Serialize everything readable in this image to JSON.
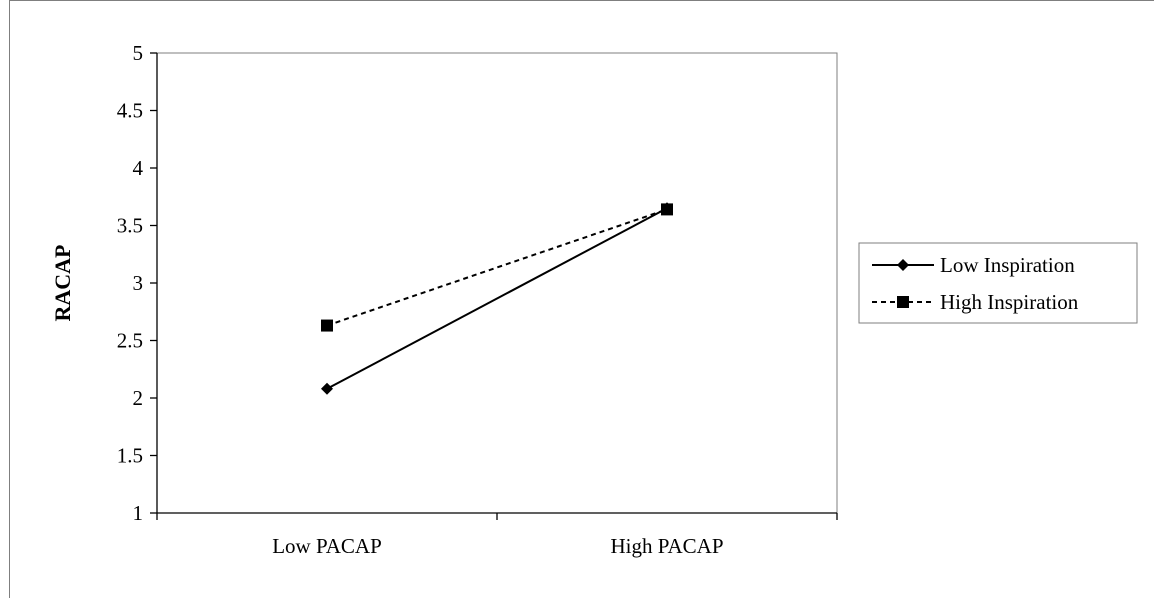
{
  "chart_data": {
    "type": "line",
    "categories": [
      "Low PACAP",
      "High PACAP"
    ],
    "ylabel": "RACAP",
    "xlabel": "",
    "ylim": [
      1,
      5
    ],
    "yticks": [
      "1",
      "1.5",
      "2",
      "2.5",
      "3",
      "3.5",
      "4",
      "4.5",
      "5"
    ],
    "grid": false,
    "legend_position": "right",
    "series": [
      {
        "name": "Low Inspiration",
        "values": [
          2.08,
          3.65
        ],
        "line_style": "solid",
        "marker": "diamond",
        "color": "#000000"
      },
      {
        "name": "High Inspiration",
        "values": [
          2.63,
          3.64
        ],
        "line_style": "dashed",
        "marker": "square",
        "color": "#000000"
      }
    ]
  }
}
